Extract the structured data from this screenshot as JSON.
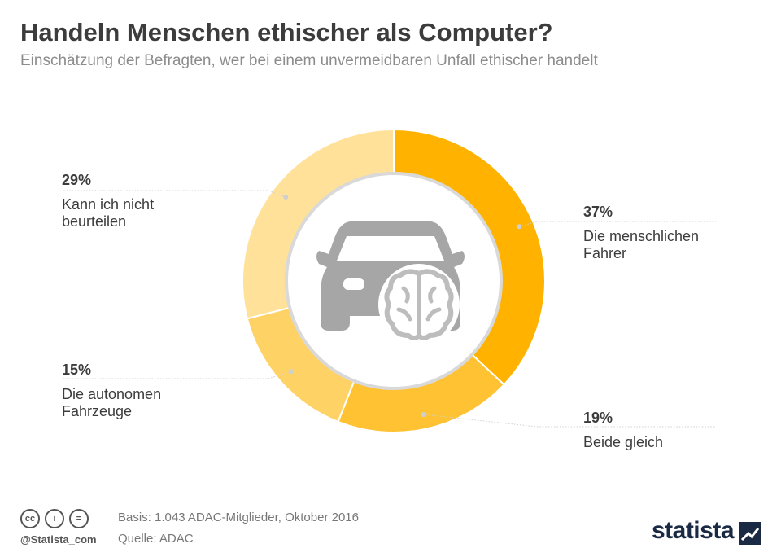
{
  "header": {
    "title": "Handeln Menschen ethischer als Computer?",
    "subtitle": "Einschätzung der Befragten, wer bei einem unvermeidbaren Unfall ethischer handelt"
  },
  "chart_data": {
    "type": "pie",
    "donut": true,
    "slices": [
      {
        "label": "Die menschlichen\nFahrer",
        "value": 37,
        "value_label": "37%",
        "color": "#ffb300"
      },
      {
        "label": "Beide gleich",
        "value": 19,
        "value_label": "19%",
        "color": "#ffc233"
      },
      {
        "label": "Die autonomen\nFahrzeuge",
        "value": 15,
        "value_label": "15%",
        "color": "#ffd266"
      },
      {
        "label": "Kann ich nicht\nbeurteilen",
        "value": 29,
        "value_label": "29%",
        "color": "#ffe199"
      }
    ]
  },
  "center_icons": [
    "car-icon",
    "brain-icon"
  ],
  "footer": {
    "basis": "Basis: 1.043 ADAC-Mitglieder, Oktober 2016",
    "source": "Quelle: ADAC",
    "handle": "@Statista_com",
    "brand": "statista",
    "license_icons": [
      "cc-icon",
      "by-icon",
      "nd-icon"
    ],
    "license_glyphs": [
      "cc",
      "i",
      "="
    ]
  }
}
